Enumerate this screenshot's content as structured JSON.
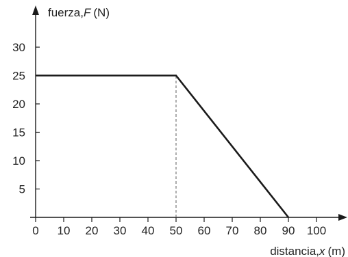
{
  "chart_data": {
    "type": "line",
    "xlabel": {
      "text": "distancia,",
      "symbol": "x",
      "unit": "(m)"
    },
    "ylabel": {
      "text": "fuerza,",
      "symbol": "F",
      "unit": "(N)"
    },
    "xlim": [
      0,
      110
    ],
    "ylim": [
      0,
      35
    ],
    "x_ticks": [
      0,
      10,
      20,
      30,
      40,
      50,
      60,
      70,
      80,
      90,
      100
    ],
    "y_ticks": [
      5,
      10,
      15,
      20,
      25,
      30
    ],
    "grid": false,
    "series": [
      {
        "x": [
          0,
          50,
          90
        ],
        "y": [
          25,
          25,
          0
        ],
        "color": "#1a1a1a"
      }
    ],
    "reference_lines": [
      {
        "x": 50,
        "y_from": 0,
        "y_to": 25,
        "style": "dashed",
        "color": "#777777"
      }
    ]
  }
}
